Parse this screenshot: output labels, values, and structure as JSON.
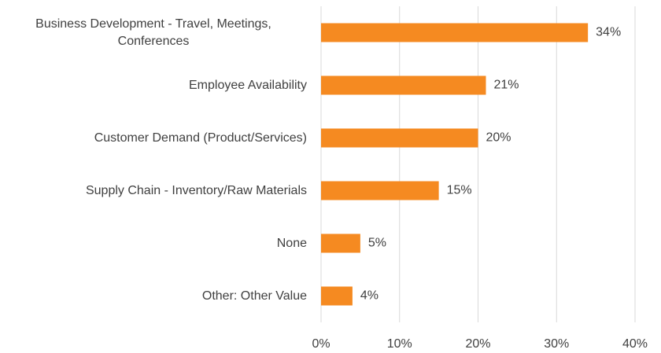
{
  "chart_data": {
    "type": "bar",
    "orientation": "horizontal",
    "categories": [
      "Business Development - Travel, Meetings, Conferences",
      "Employee Availability",
      "Customer Demand (Product/Services)",
      "Supply Chain - Inventory/Raw Materials",
      "None",
      "Other: Other Value"
    ],
    "values": [
      34,
      21,
      20,
      15,
      5,
      4
    ],
    "value_labels": [
      "34%",
      "21%",
      "20%",
      "15%",
      "5%",
      "4%"
    ],
    "color": "#f58a21",
    "xlim": [
      0,
      40
    ],
    "xticks": [
      {
        "value": 0,
        "label": "0%"
      },
      {
        "value": 10,
        "label": "10%"
      },
      {
        "value": 20,
        "label": "20%"
      },
      {
        "value": 30,
        "label": "30%"
      },
      {
        "value": 40,
        "label": "40%"
      }
    ],
    "grid": true
  }
}
